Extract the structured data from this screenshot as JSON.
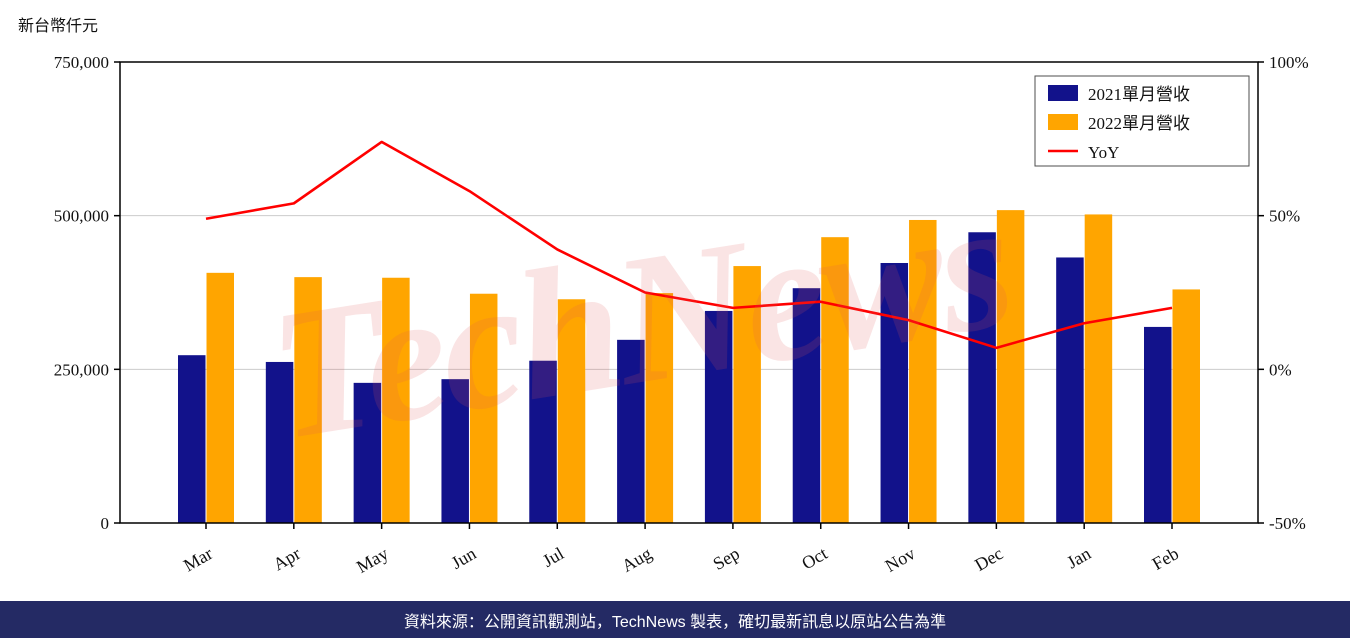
{
  "page": {
    "unit_label": "新台幣仟元",
    "watermark": "TechNews",
    "footer": "資料來源：公開資訊觀測站，TechNews 製表，確切最新訊息以原站公告為準",
    "footer_bg": "#242a64"
  },
  "chart_data": {
    "type": "bar",
    "categories": [
      "Mar",
      "Apr",
      "May",
      "Jun",
      "Jul",
      "Aug",
      "Sep",
      "Oct",
      "Nov",
      "Dec",
      "Jan",
      "Feb"
    ],
    "series": [
      {
        "name": "2021單月營收",
        "type": "bar",
        "axis": "left",
        "color": "#12128b",
        "values": [
          273000,
          262000,
          228000,
          234000,
          264000,
          298000,
          345000,
          382000,
          423000,
          473000,
          432000,
          319000
        ]
      },
      {
        "name": "2022單月營收",
        "type": "bar",
        "axis": "left",
        "color": "#ffa500",
        "values": [
          407000,
          400000,
          399000,
          373000,
          364000,
          374000,
          418000,
          465000,
          493000,
          509000,
          502000,
          380000
        ]
      },
      {
        "name": "YoY",
        "type": "line",
        "axis": "right",
        "color": "#ff0000",
        "values": [
          49,
          54,
          74,
          58,
          39,
          25,
          20,
          22,
          16,
          7,
          15,
          20
        ]
      }
    ],
    "left_axis": {
      "title": "新台幣仟元",
      "min": 0,
      "max": 750000,
      "ticks": [
        0,
        250000,
        500000,
        750000
      ]
    },
    "right_axis": {
      "min": -50,
      "max": 100,
      "ticks": [
        -50,
        0,
        50,
        100
      ],
      "suffix": "%"
    },
    "legend_position": "top-right",
    "grid": true
  }
}
